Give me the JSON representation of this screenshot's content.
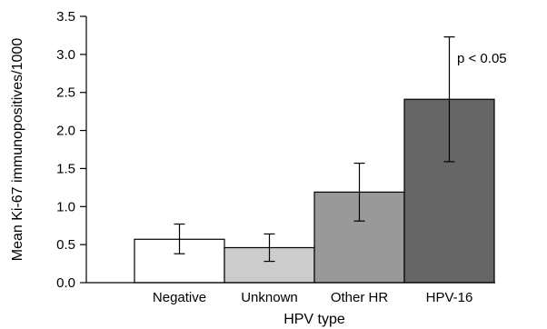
{
  "chart_data": {
    "type": "bar",
    "title": "",
    "xlabel": "HPV type",
    "ylabel": "Mean Ki-67 immunopositives/1000",
    "ylim": [
      0,
      3.5
    ],
    "yticks": [
      "0.0",
      "0.5",
      "1.0",
      "1.5",
      "2.0",
      "2.5",
      "3.0",
      "3.5"
    ],
    "categories": [
      "Negative",
      "Unknown",
      "Other HR",
      "HPV-16"
    ],
    "values": [
      0.57,
      0.46,
      1.19,
      2.41
    ],
    "error_low": [
      0.38,
      0.28,
      0.81,
      1.59
    ],
    "error_high": [
      0.77,
      0.64,
      1.57,
      3.23
    ],
    "bar_colors": [
      "#ffffff",
      "#cccccc",
      "#999999",
      "#666666"
    ],
    "annotation": "p < 0.05",
    "grid": false
  }
}
